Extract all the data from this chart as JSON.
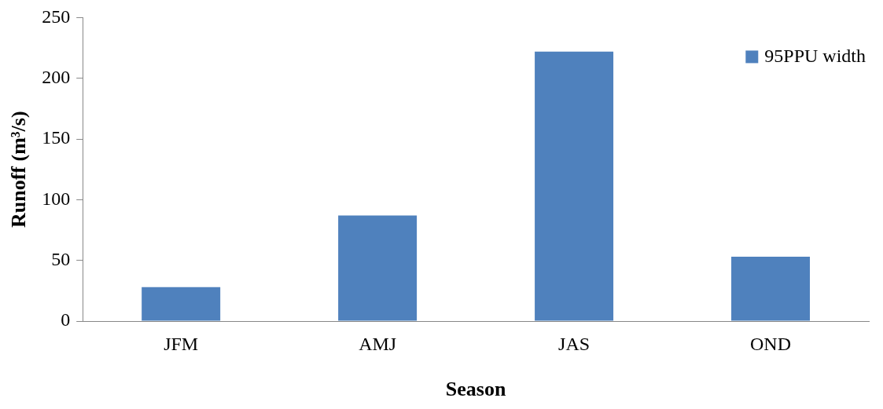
{
  "chart_data": {
    "type": "bar",
    "xlabel": "Season",
    "ylabel": "Runoff (m³/s)",
    "categories": [
      "JFM",
      "AMJ",
      "JAS",
      "OND"
    ],
    "series": [
      {
        "name": "95PPU width",
        "color": "#4f81bd",
        "values": [
          28,
          87,
          222,
          53
        ]
      }
    ],
    "ylim": [
      0,
      250
    ],
    "yticks": [
      0,
      50,
      100,
      150,
      200,
      250
    ],
    "grid": false,
    "legend": "top right"
  }
}
